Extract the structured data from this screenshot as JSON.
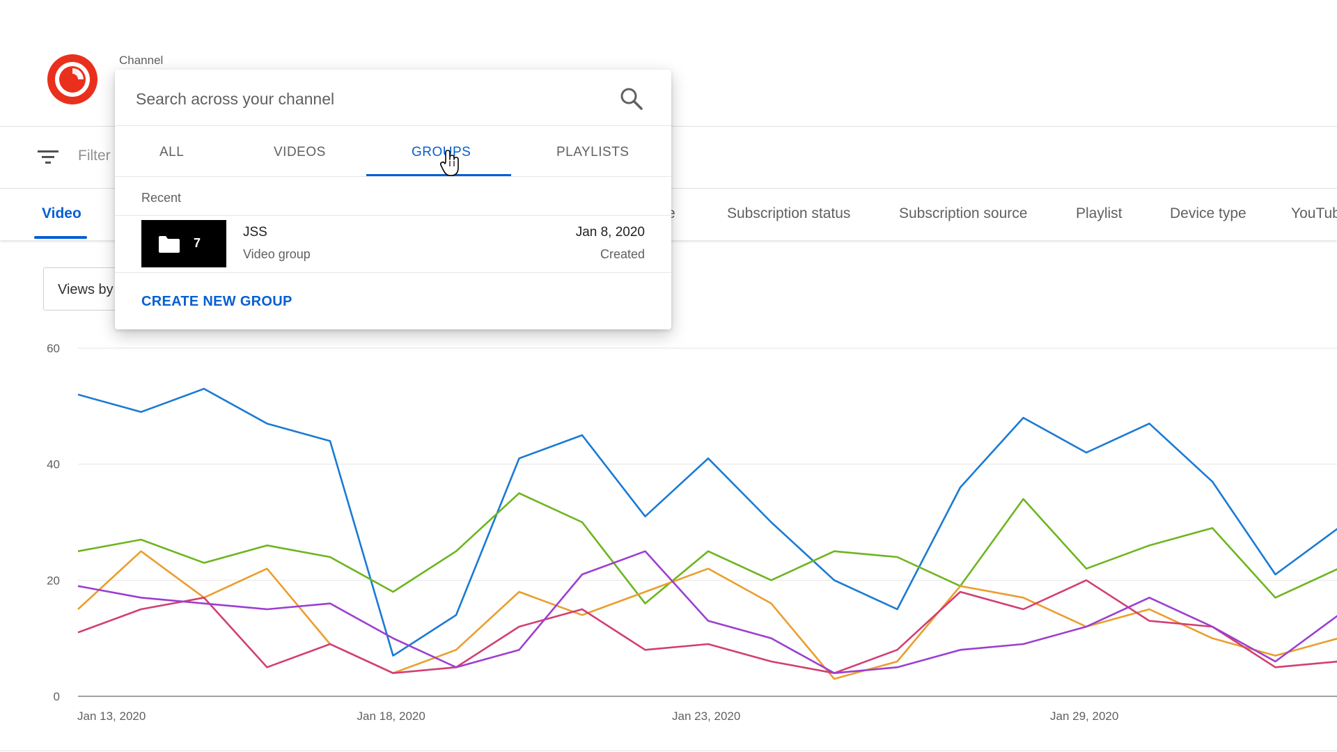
{
  "header": {
    "channel_label": "Channel"
  },
  "filter": {
    "placeholder": "Filter"
  },
  "dimension_tabs": {
    "video": "Video",
    "partial": "e",
    "subscription_status": "Subscription status",
    "subscription_source": "Subscription source",
    "playlist": "Playlist",
    "device_type": "Device type",
    "youtube": "YouTub"
  },
  "metric_select": {
    "value": "Views by"
  },
  "popup": {
    "search_placeholder": "Search across your channel",
    "tabs": [
      "ALL",
      "VIDEOS",
      "GROUPS",
      "PLAYLISTS"
    ],
    "active_tab": "GROUPS",
    "recent_label": "Recent",
    "result": {
      "title": "JSS",
      "subtitle": "Video group",
      "count": "7",
      "date": "Jan 8, 2020",
      "status": "Created"
    },
    "create_label": "CREATE NEW GROUP"
  },
  "colors": {
    "accent": "#065fd4",
    "logo": "#e8301c",
    "series": [
      "#1a7ad4",
      "#6db51f",
      "#ea9e2c",
      "#d13f73",
      "#9b3fcf"
    ]
  },
  "icons": {
    "logo": "channel-logo",
    "filter": "filter-icon",
    "search": "search-icon",
    "folder": "folder-icon",
    "cursor": "hand-pointer-cursor"
  },
  "chart_data": {
    "type": "line",
    "ylim": [
      0,
      60
    ],
    "yticks": [
      "0",
      "20",
      "40",
      "60"
    ],
    "xtick_labels": [
      "Jan 13, 2020",
      "Jan 18, 2020",
      "Jan 23, 2020",
      "Jan 29, 2020"
    ],
    "xtick_index": [
      0,
      5,
      10,
      16
    ],
    "x_count": 21,
    "series": [
      {
        "color": "#1a7ad4",
        "values": [
          52,
          49,
          53,
          47,
          44,
          7,
          14,
          41,
          45,
          31,
          41,
          30,
          20,
          15,
          36,
          48,
          42,
          47,
          37,
          21,
          29
        ]
      },
      {
        "color": "#6db51f",
        "values": [
          25,
          27,
          23,
          26,
          24,
          18,
          25,
          35,
          30,
          16,
          25,
          20,
          25,
          24,
          19,
          34,
          22,
          26,
          29,
          17,
          22
        ]
      },
      {
        "color": "#ea9e2c",
        "values": [
          15,
          25,
          17,
          22,
          9,
          4,
          8,
          18,
          14,
          18,
          22,
          16,
          3,
          6,
          19,
          17,
          12,
          15,
          10,
          7,
          10
        ]
      },
      {
        "color": "#d13f73",
        "values": [
          11,
          15,
          17,
          5,
          9,
          4,
          5,
          12,
          15,
          8,
          9,
          6,
          4,
          8,
          18,
          15,
          20,
          13,
          12,
          5,
          6
        ]
      },
      {
        "color": "#9b3fcf",
        "values": [
          19,
          17,
          16,
          15,
          16,
          10,
          5,
          8,
          21,
          25,
          13,
          10,
          4,
          5,
          8,
          9,
          12,
          17,
          12,
          6,
          14
        ]
      }
    ]
  }
}
